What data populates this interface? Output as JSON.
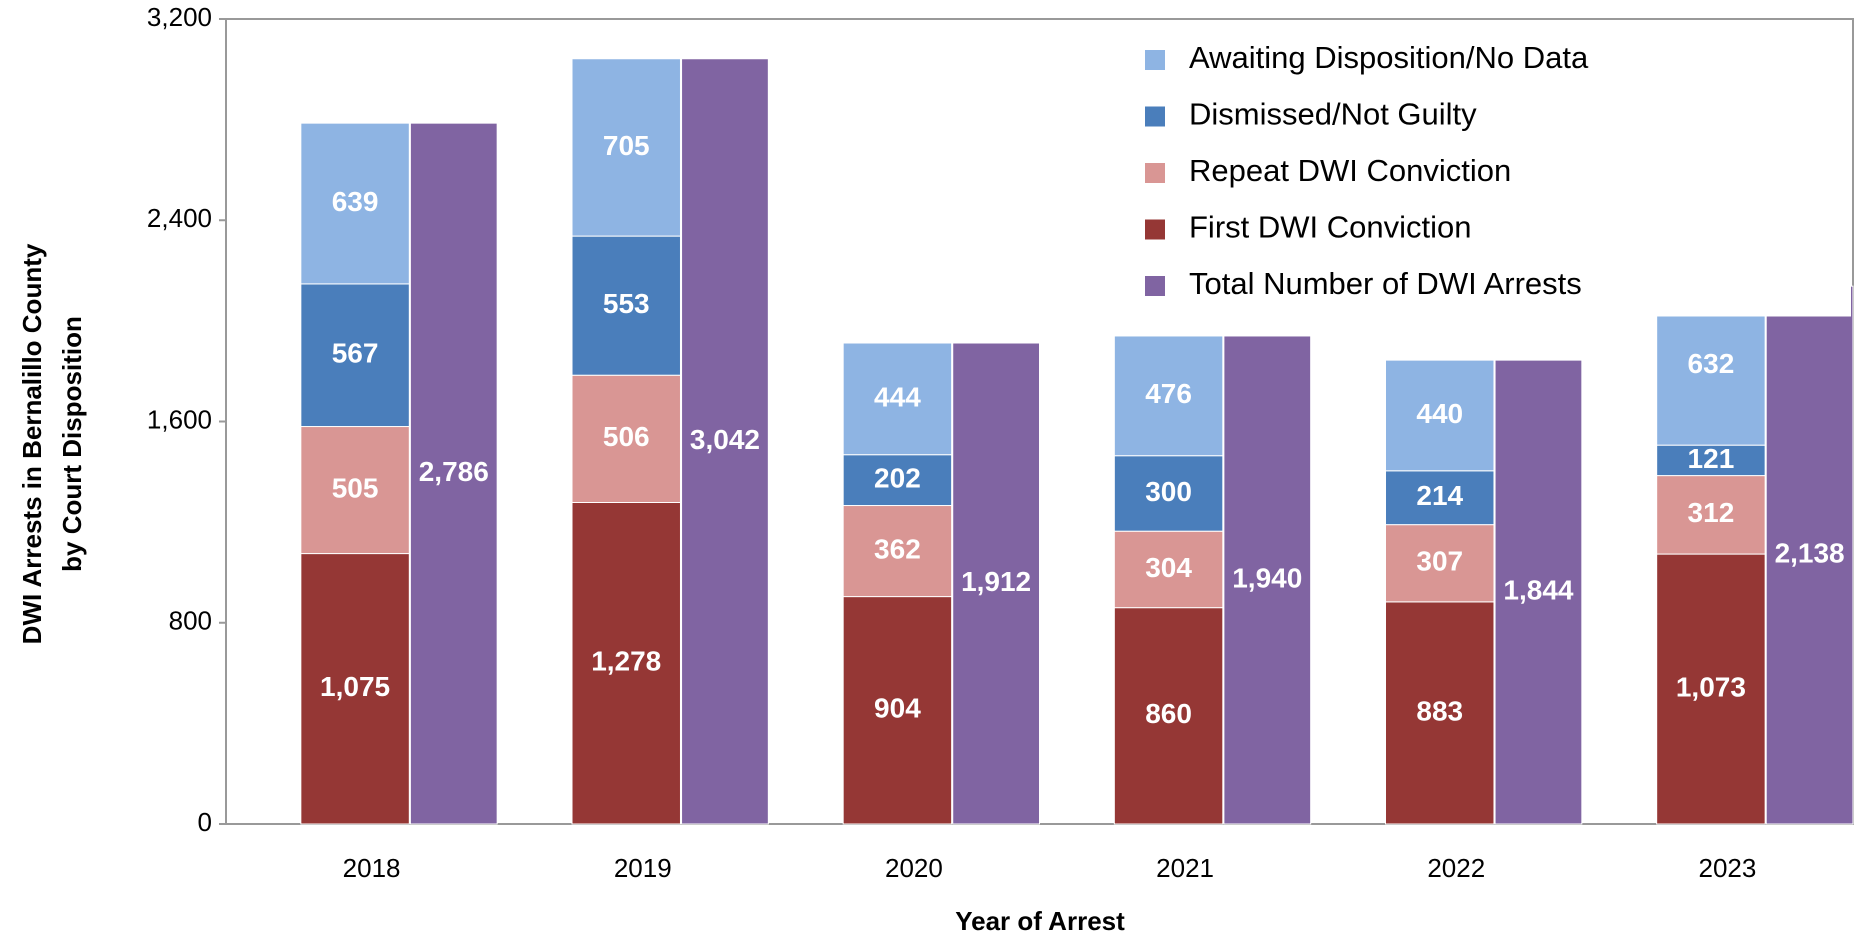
{
  "chart_data": {
    "type": "bar",
    "xlabel": "Year of Arrest",
    "ylabel": [
      "DWI Arrests in Bernalillo County",
      "by Court Disposition"
    ],
    "categories": [
      "2018",
      "2019",
      "2020",
      "2021",
      "2022",
      "2023"
    ],
    "stacked": true,
    "series": [
      {
        "name": "First DWI Conviction",
        "color": "#953735",
        "stack": "disposition",
        "values": [
          1075,
          1278,
          904,
          860,
          883,
          1073
        ],
        "value_labels": [
          "1,075",
          "1,278",
          "904",
          "860",
          "883",
          "1,073"
        ]
      },
      {
        "name": "Repeat DWI Conviction",
        "color": "#d99694",
        "stack": "disposition",
        "values": [
          505,
          506,
          362,
          304,
          307,
          312
        ]
      },
      {
        "name": "Dismissed/Not Guilty",
        "color": "#4a7ebb",
        "stack": "disposition",
        "values": [
          567,
          553,
          202,
          300,
          214,
          121
        ]
      },
      {
        "name": "Awaiting Disposition/No Data",
        "color": "#8eb4e3",
        "stack": "disposition",
        "values": [
          639,
          705,
          444,
          476,
          440,
          632
        ]
      },
      {
        "name": "Total Number of DWI Arrests",
        "color": "#8064a2",
        "stack": "total",
        "values": [
          2786,
          3042,
          1912,
          1940,
          1844,
          2138
        ],
        "value_labels": [
          "2,786",
          "3,042",
          "1,912",
          "1,940",
          "1,844",
          "2,138"
        ]
      }
    ],
    "legend_order": [
      3,
      2,
      1,
      0,
      4
    ],
    "legend": "upper right",
    "ylim": [
      0,
      3200
    ],
    "yticks": [
      0,
      800,
      {
        "value": 1600,
        "label": "1,600"
      },
      {
        "value": 2400,
        "label": "2,400"
      },
      {
        "value": 3200,
        "label": "3,200"
      }
    ],
    "grid": false
  }
}
